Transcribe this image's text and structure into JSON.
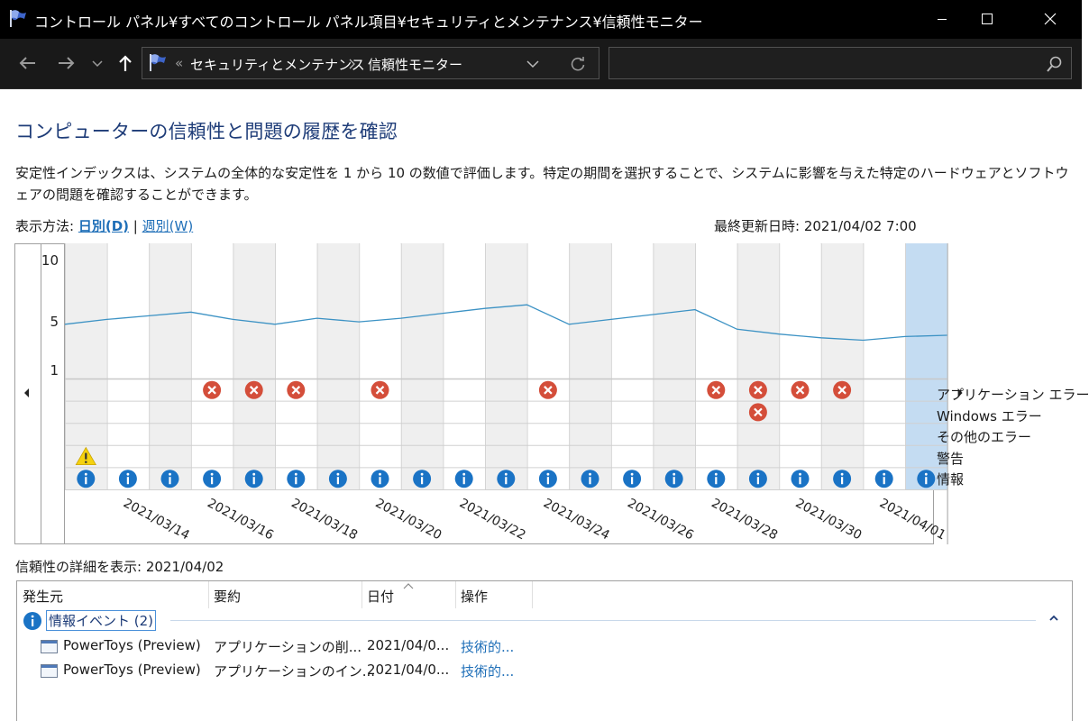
{
  "window": {
    "title": "コントロール パネル¥すべてのコントロール パネル項目¥セキュリティとメンテナンス¥信頼性モニター"
  },
  "address": {
    "overflow": "«",
    "crumbs": [
      "セキュリティとメンテナンス",
      "信頼性モニター"
    ],
    "search_placeholder": ""
  },
  "page": {
    "heading": "コンピューターの信頼性と問題の履歴を確認",
    "description": "安定性インデックスは、システムの全体的な安定性を 1 から 10 の数値で評価します。特定の期間を選択することで、システムに影響を与えた特定のハードウェアとソフトウェアの問題を確認することができます。",
    "view_label": "表示方法:",
    "view_daily": "日別(D)",
    "view_separator": "|",
    "view_weekly": "週別(W)",
    "last_updated": "最終更新日時: 2021/04/02 7:00"
  },
  "chart_data": {
    "type": "line",
    "title": "",
    "ylabel": "",
    "xlabel": "",
    "y_ticks": [
      "10",
      "5",
      "1"
    ],
    "ylim": [
      1,
      10
    ],
    "dates": [
      "2021/03/13",
      "2021/03/14",
      "2021/03/15",
      "2021/03/16",
      "2021/03/17",
      "2021/03/18",
      "2021/03/19",
      "2021/03/20",
      "2021/03/21",
      "2021/03/22",
      "2021/03/23",
      "2021/03/24",
      "2021/03/25",
      "2021/03/26",
      "2021/03/27",
      "2021/03/28",
      "2021/03/29",
      "2021/03/30",
      "2021/03/31",
      "2021/04/01",
      "2021/04/02"
    ],
    "x_tick_labels": [
      "2021/03/14",
      "2021/03/16",
      "2021/03/18",
      "2021/03/20",
      "2021/03/22",
      "2021/03/24",
      "2021/03/26",
      "2021/03/28",
      "2021/03/30",
      "2021/04/01"
    ],
    "stability_index": [
      4.7,
      5.1,
      5.4,
      5.7,
      5.1,
      4.7,
      5.2,
      4.9,
      5.2,
      5.6,
      6.0,
      6.3,
      4.7,
      5.1,
      5.5,
      5.9,
      4.3,
      3.9,
      3.6,
      3.4,
      3.7
    ],
    "line_color": "#3c92c4",
    "selected_date": "2021/04/02",
    "rows": [
      {
        "name": "アプリケーション エラー",
        "events": [
          0,
          0,
          0,
          1,
          1,
          1,
          0,
          1,
          0,
          0,
          0,
          1,
          0,
          0,
          0,
          1,
          1,
          1,
          1,
          0,
          0
        ]
      },
      {
        "name": "Windows エラー",
        "events": [
          0,
          0,
          0,
          0,
          0,
          0,
          0,
          0,
          0,
          0,
          0,
          0,
          0,
          0,
          0,
          0,
          1,
          0,
          0,
          0,
          0
        ]
      },
      {
        "name": "その他のエラー",
        "events": [
          0,
          0,
          0,
          0,
          0,
          0,
          0,
          0,
          0,
          0,
          0,
          0,
          0,
          0,
          0,
          0,
          0,
          0,
          0,
          0,
          0
        ]
      },
      {
        "name": "警告",
        "events": [
          1,
          0,
          0,
          0,
          0,
          0,
          0,
          0,
          0,
          0,
          0,
          0,
          0,
          0,
          0,
          0,
          0,
          0,
          0,
          0,
          0
        ]
      },
      {
        "name": "情報",
        "events": [
          1,
          1,
          1,
          1,
          1,
          1,
          1,
          1,
          1,
          1,
          1,
          1,
          1,
          1,
          1,
          1,
          1,
          1,
          1,
          1,
          1
        ]
      }
    ]
  },
  "details": {
    "label": "信頼性の詳細を表示: 2021/04/02",
    "columns": [
      "発生元",
      "要約",
      "日付",
      "操作"
    ],
    "group": "情報イベント (2)",
    "rows": [
      {
        "source": "PowerToys (Preview)",
        "summary": "アプリケーションの削...",
        "date": "2021/04/0...",
        "action": "技術的..."
      },
      {
        "source": "PowerToys (Preview)",
        "summary": "アプリケーションのイン...",
        "date": "2021/04/0...",
        "action": "技術的..."
      }
    ]
  },
  "colors": {
    "accent": "#1f6fb8",
    "error": "#d44e3a",
    "warning": "#f5d20f",
    "info": "#1a73c5",
    "selected_column": "#c4dcf2",
    "shaded_column": "#efefef"
  }
}
